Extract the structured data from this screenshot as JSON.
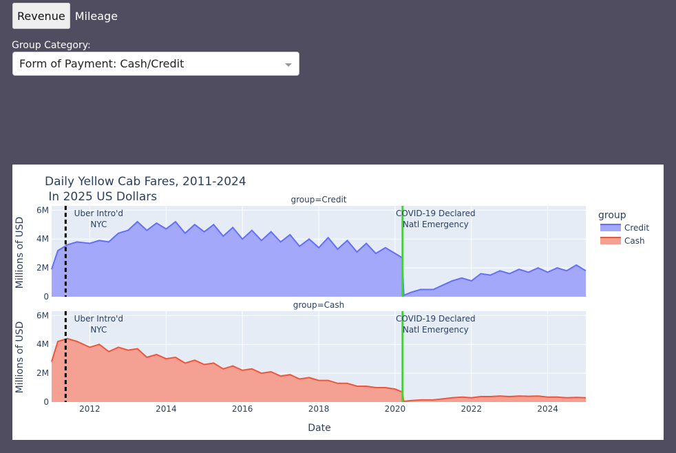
{
  "tabs": [
    {
      "label": "Revenue",
      "active": true
    },
    {
      "label": "Mileage",
      "active": false
    }
  ],
  "group_selector": {
    "label": "Group Category:",
    "value": "Form of Payment: Cash/Credit"
  },
  "chart_data": {
    "type": "area",
    "title": "Daily Yellow Cab Fares, 2011-2024",
    "subtitle": " In 2025 US Dollars",
    "xlabel": "Date",
    "ylabel": "Millions of USD",
    "x_range": [
      "2011-01-01",
      "2024-12-31"
    ],
    "x_ticks": [
      "2012",
      "2014",
      "2016",
      "2018",
      "2020",
      "2022",
      "2024"
    ],
    "ylim": [
      0,
      6.3
    ],
    "y_ticks": [
      "0",
      "2M",
      "4M",
      "6M"
    ],
    "y_tick_values": [
      0,
      2,
      4,
      6
    ],
    "legend": {
      "title": "group",
      "position": "right"
    },
    "facets": [
      {
        "title": "group=Credit",
        "name": "Credit",
        "line_color": "#636efa",
        "fill_color": "#a3a8fb",
        "points": [
          [
            "2011-01-01",
            1.9
          ],
          [
            "2011-03-01",
            3.2
          ],
          [
            "2011-06-01",
            3.6
          ],
          [
            "2011-09-01",
            3.8
          ],
          [
            "2012-01-01",
            3.7
          ],
          [
            "2012-04-01",
            3.9
          ],
          [
            "2012-07-01",
            3.8
          ],
          [
            "2012-10-01",
            4.4
          ],
          [
            "2013-01-01",
            4.6
          ],
          [
            "2013-04-01",
            5.2
          ],
          [
            "2013-07-01",
            4.6
          ],
          [
            "2013-10-01",
            5.1
          ],
          [
            "2014-01-01",
            4.7
          ],
          [
            "2014-04-01",
            5.2
          ],
          [
            "2014-07-01",
            4.4
          ],
          [
            "2014-10-01",
            5.0
          ],
          [
            "2015-01-01",
            4.5
          ],
          [
            "2015-04-01",
            5.0
          ],
          [
            "2015-07-01",
            4.2
          ],
          [
            "2015-10-01",
            4.8
          ],
          [
            "2016-01-01",
            4.0
          ],
          [
            "2016-04-01",
            4.6
          ],
          [
            "2016-07-01",
            3.9
          ],
          [
            "2016-10-01",
            4.5
          ],
          [
            "2017-01-01",
            3.8
          ],
          [
            "2017-04-01",
            4.3
          ],
          [
            "2017-07-01",
            3.5
          ],
          [
            "2017-10-01",
            4.0
          ],
          [
            "2018-01-01",
            3.4
          ],
          [
            "2018-04-01",
            4.1
          ],
          [
            "2018-07-01",
            3.3
          ],
          [
            "2018-10-01",
            3.9
          ],
          [
            "2019-01-01",
            3.1
          ],
          [
            "2019-04-01",
            3.7
          ],
          [
            "2019-07-01",
            3.0
          ],
          [
            "2019-10-01",
            3.4
          ],
          [
            "2020-01-01",
            3.0
          ],
          [
            "2020-03-10",
            2.7
          ],
          [
            "2020-03-25",
            0.1
          ],
          [
            "2020-06-01",
            0.3
          ],
          [
            "2020-09-01",
            0.5
          ],
          [
            "2021-01-01",
            0.5
          ],
          [
            "2021-04-01",
            0.8
          ],
          [
            "2021-07-01",
            1.1
          ],
          [
            "2021-10-01",
            1.3
          ],
          [
            "2022-01-01",
            1.1
          ],
          [
            "2022-04-01",
            1.6
          ],
          [
            "2022-07-01",
            1.5
          ],
          [
            "2022-10-01",
            1.8
          ],
          [
            "2023-01-01",
            1.6
          ],
          [
            "2023-04-01",
            1.9
          ],
          [
            "2023-07-01",
            1.7
          ],
          [
            "2023-10-01",
            2.0
          ],
          [
            "2024-01-01",
            1.7
          ],
          [
            "2024-04-01",
            2.0
          ],
          [
            "2024-07-01",
            1.8
          ],
          [
            "2024-10-01",
            2.2
          ],
          [
            "2024-12-31",
            1.8
          ]
        ]
      },
      {
        "title": "group=Cash",
        "name": "Cash",
        "line_color": "#ef553b",
        "fill_color": "#f4a092",
        "points": [
          [
            "2011-01-01",
            2.8
          ],
          [
            "2011-03-01",
            4.2
          ],
          [
            "2011-06-01",
            4.4
          ],
          [
            "2011-09-01",
            4.2
          ],
          [
            "2012-01-01",
            3.8
          ],
          [
            "2012-04-01",
            4.0
          ],
          [
            "2012-07-01",
            3.5
          ],
          [
            "2012-10-01",
            3.8
          ],
          [
            "2013-01-01",
            3.6
          ],
          [
            "2013-04-01",
            3.7
          ],
          [
            "2013-07-01",
            3.1
          ],
          [
            "2013-10-01",
            3.3
          ],
          [
            "2014-01-01",
            3.0
          ],
          [
            "2014-04-01",
            3.1
          ],
          [
            "2014-07-01",
            2.7
          ],
          [
            "2014-10-01",
            2.9
          ],
          [
            "2015-01-01",
            2.6
          ],
          [
            "2015-04-01",
            2.7
          ],
          [
            "2015-07-01",
            2.3
          ],
          [
            "2015-10-01",
            2.5
          ],
          [
            "2016-01-01",
            2.2
          ],
          [
            "2016-04-01",
            2.3
          ],
          [
            "2016-07-01",
            2.0
          ],
          [
            "2016-10-01",
            2.1
          ],
          [
            "2017-01-01",
            1.8
          ],
          [
            "2017-04-01",
            1.9
          ],
          [
            "2017-07-01",
            1.6
          ],
          [
            "2017-10-01",
            1.7
          ],
          [
            "2018-01-01",
            1.5
          ],
          [
            "2018-04-01",
            1.5
          ],
          [
            "2018-07-01",
            1.3
          ],
          [
            "2018-10-01",
            1.3
          ],
          [
            "2019-01-01",
            1.1
          ],
          [
            "2019-04-01",
            1.1
          ],
          [
            "2019-07-01",
            1.0
          ],
          [
            "2019-10-01",
            1.0
          ],
          [
            "2020-01-01",
            0.9
          ],
          [
            "2020-03-10",
            0.7
          ],
          [
            "2020-03-25",
            0.05
          ],
          [
            "2020-06-01",
            0.1
          ],
          [
            "2020-09-01",
            0.15
          ],
          [
            "2021-01-01",
            0.15
          ],
          [
            "2021-04-01",
            0.22
          ],
          [
            "2021-07-01",
            0.3
          ],
          [
            "2021-10-01",
            0.35
          ],
          [
            "2022-01-01",
            0.3
          ],
          [
            "2022-04-01",
            0.38
          ],
          [
            "2022-07-01",
            0.38
          ],
          [
            "2022-10-01",
            0.42
          ],
          [
            "2023-01-01",
            0.38
          ],
          [
            "2023-04-01",
            0.42
          ],
          [
            "2023-07-01",
            0.4
          ],
          [
            "2023-10-01",
            0.42
          ],
          [
            "2024-01-01",
            0.35
          ],
          [
            "2024-04-01",
            0.35
          ],
          [
            "2024-07-01",
            0.3
          ],
          [
            "2024-10-01",
            0.32
          ],
          [
            "2024-12-31",
            0.3
          ]
        ]
      }
    ],
    "annotations": [
      {
        "date": "2011-05-15",
        "label_line1": "Uber Intro'd",
        "label_line2": "NYC",
        "line_color": "#000000",
        "line_style": "dashed"
      },
      {
        "date": "2020-03-13",
        "label_line1": "COVID-19 Declared",
        "label_line2": "Natl Emergency",
        "line_color": "#33dd22",
        "line_style": "solid"
      }
    ]
  }
}
